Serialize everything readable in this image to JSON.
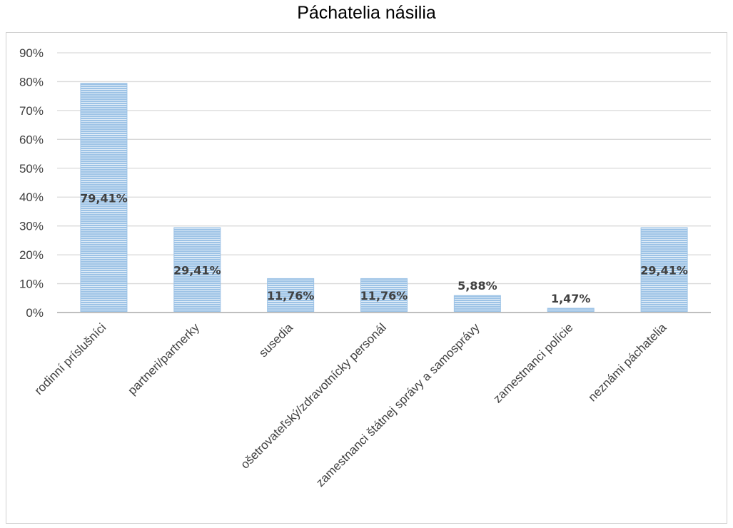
{
  "chart_data": {
    "type": "bar",
    "title": "Páchatelia násilia",
    "xlabel": "",
    "ylabel": "",
    "categories": [
      "rodinní príslušníci",
      "partneri/partnerky",
      "susedia",
      "ošetrovateľský/zdravotnícky personál",
      "zamestnanci štátnej správy a samosprávy",
      "zamestnanci polície",
      "neznámi páchatelia"
    ],
    "values": [
      79.41,
      29.41,
      11.76,
      11.76,
      5.88,
      1.47,
      29.41
    ],
    "data_labels": [
      "79,41%",
      "29,41%",
      "11,76%",
      "11,76%",
      "5,88%",
      "1,47%",
      "29,41%"
    ],
    "ylim": [
      0,
      90
    ],
    "yticks": [
      "0%",
      "10%",
      "20%",
      "30%",
      "40%",
      "50%",
      "60%",
      "70%",
      "80%",
      "90%"
    ],
    "grid": true,
    "legend": "none",
    "colors": {
      "bar": "#9dc3e6",
      "bar_line": "#ffffff",
      "grid": "#d9d9d9",
      "axis": "#bfbfbf"
    }
  }
}
